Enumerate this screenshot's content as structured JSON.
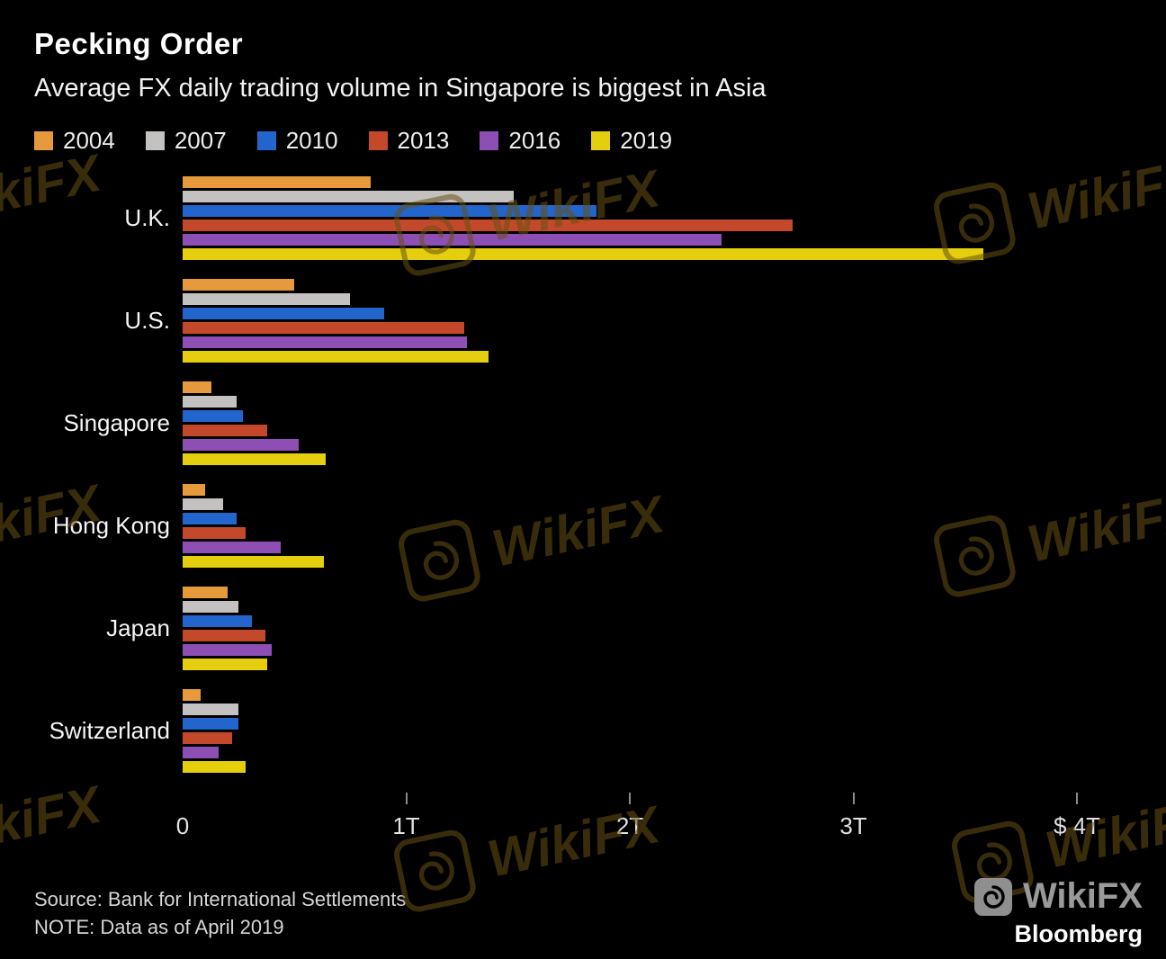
{
  "title": "Pecking Order",
  "subtitle": "Average FX daily trading volume in Singapore is biggest in Asia",
  "source_line": "Source: Bank for International Settlements",
  "note_line": "NOTE: Data as of April 2019",
  "watermark_text": "WikiFX",
  "brand": {
    "wikifx": "WikiFX",
    "bloomberg": "Bloomberg"
  },
  "chart_data": {
    "type": "bar",
    "orientation": "horizontal",
    "title": "Pecking Order",
    "subtitle": "Average FX daily trading volume in Singapore is biggest in Asia",
    "categories": [
      "U.K.",
      "U.S.",
      "Singapore",
      "Hong Kong",
      "Japan",
      "Switzerland"
    ],
    "series": [
      {
        "name": "2004",
        "color": "#E79A3B",
        "values": [
          0.84,
          0.5,
          0.13,
          0.1,
          0.2,
          0.08
        ]
      },
      {
        "name": "2007",
        "color": "#C3C2C0",
        "values": [
          1.48,
          0.75,
          0.24,
          0.18,
          0.25,
          0.25
        ]
      },
      {
        "name": "2010",
        "color": "#2265CC",
        "values": [
          1.85,
          0.9,
          0.27,
          0.24,
          0.31,
          0.25
        ]
      },
      {
        "name": "2013",
        "color": "#C4492A",
        "values": [
          2.73,
          1.26,
          0.38,
          0.28,
          0.37,
          0.22
        ]
      },
      {
        "name": "2016",
        "color": "#8E4FB5",
        "values": [
          2.41,
          1.27,
          0.52,
          0.44,
          0.4,
          0.16
        ]
      },
      {
        "name": "2019",
        "color": "#E5CE0D",
        "values": [
          3.58,
          1.37,
          0.64,
          0.63,
          0.38,
          0.28
        ]
      }
    ],
    "xlabel": "",
    "ylabel": "",
    "unit": "trillions of U.S. dollars per day",
    "xlim": [
      0,
      4.4
    ],
    "x_ticks": [
      {
        "value": 0,
        "label": "0"
      },
      {
        "value": 1,
        "label": "1T"
      },
      {
        "value": 2,
        "label": "2T"
      },
      {
        "value": 3,
        "label": "3T"
      },
      {
        "value": 4,
        "label": "$ 4T"
      }
    ],
    "grid": false,
    "legend_position": "top"
  }
}
